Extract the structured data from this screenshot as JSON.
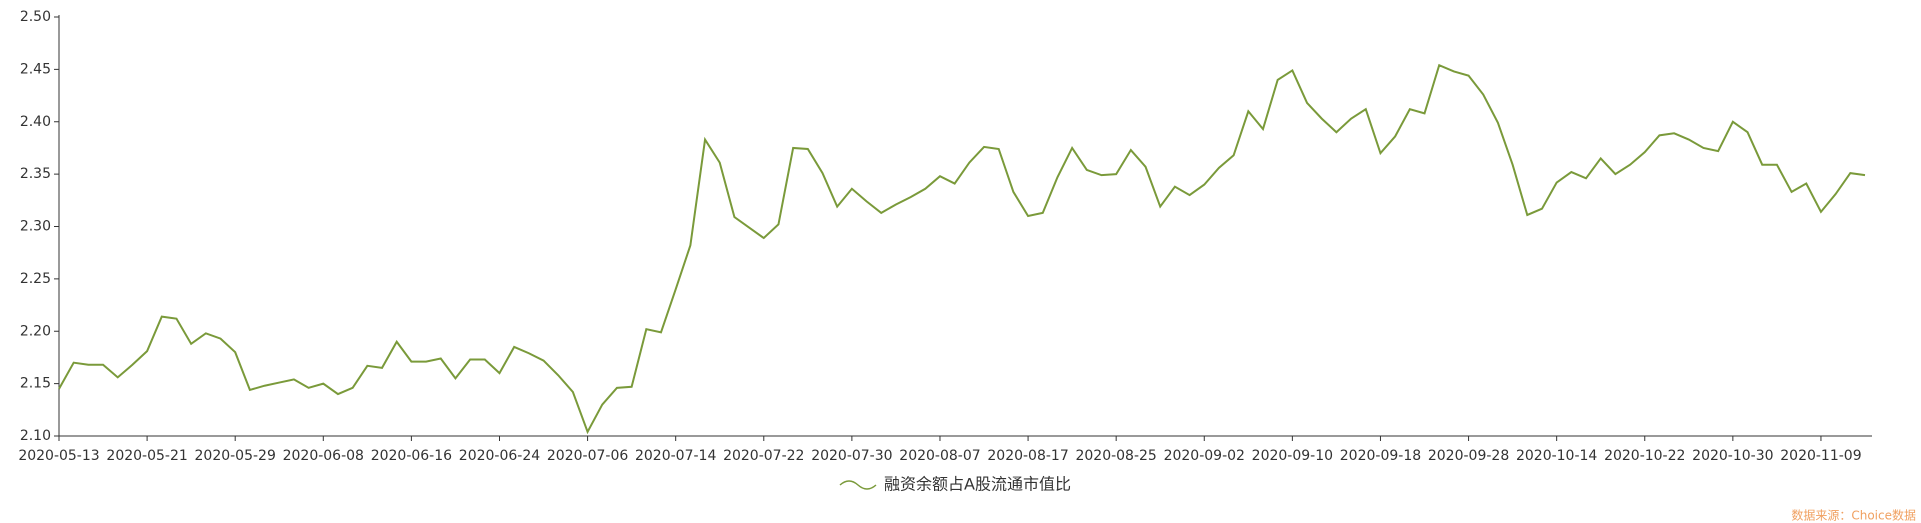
{
  "chart_data": {
    "type": "line",
    "categories": [
      "2020-05-13",
      null,
      null,
      null,
      null,
      null,
      "2020-05-21",
      null,
      null,
      null,
      null,
      null,
      "2020-05-29",
      null,
      null,
      null,
      null,
      null,
      "2020-06-08",
      null,
      null,
      null,
      null,
      null,
      "2020-06-16",
      null,
      null,
      null,
      null,
      null,
      "2020-06-24",
      null,
      null,
      null,
      null,
      null,
      "2020-07-06",
      null,
      null,
      null,
      null,
      null,
      "2020-07-14",
      null,
      null,
      null,
      null,
      null,
      "2020-07-22",
      null,
      null,
      null,
      null,
      null,
      "2020-07-30",
      null,
      null,
      null,
      null,
      null,
      "2020-08-07",
      null,
      null,
      null,
      null,
      null,
      "2020-08-17",
      null,
      null,
      null,
      null,
      null,
      "2020-08-25",
      null,
      null,
      null,
      null,
      null,
      "2020-09-02",
      null,
      null,
      null,
      null,
      null,
      "2020-09-10",
      null,
      null,
      null,
      null,
      null,
      "2020-09-18",
      null,
      null,
      null,
      null,
      null,
      "2020-09-28",
      null,
      null,
      null,
      null,
      null,
      "2020-10-14",
      null,
      null,
      null,
      null,
      null,
      "2020-10-22",
      null,
      null,
      null,
      null,
      null,
      "2020-10-30",
      null,
      null,
      null,
      null,
      null,
      "2020-11-09",
      null,
      null,
      null
    ],
    "series": [
      {
        "name": "融资余额占A股流通市值比",
        "color": "#7a9a3a",
        "values": [
          2.145,
          2.17,
          2.168,
          2.168,
          2.156,
          2.168,
          2.181,
          2.214,
          2.212,
          2.188,
          2.198,
          2.193,
          2.18,
          2.144,
          2.148,
          2.151,
          2.154,
          2.146,
          2.15,
          2.14,
          2.146,
          2.167,
          2.165,
          2.19,
          2.171,
          2.171,
          2.174,
          2.155,
          2.173,
          2.173,
          2.16,
          2.185,
          2.179,
          2.172,
          2.158,
          2.142,
          2.104,
          2.13,
          2.146,
          2.147,
          2.202,
          2.199,
          2.24,
          2.282,
          2.383,
          2.361,
          2.309,
          2.299,
          2.289,
          2.302,
          2.375,
          2.374,
          2.351,
          2.319,
          2.336,
          2.324,
          2.313,
          2.321,
          2.328,
          2.336,
          2.348,
          2.341,
          2.361,
          2.376,
          2.374,
          2.333,
          2.31,
          2.313,
          2.347,
          2.375,
          2.354,
          2.349,
          2.35,
          2.373,
          2.357,
          2.319,
          2.338,
          2.33,
          2.34,
          2.356,
          2.368,
          2.41,
          2.393,
          2.44,
          2.449,
          2.418,
          2.403,
          2.39,
          2.403,
          2.412,
          2.37,
          2.386,
          2.412,
          2.408,
          2.454,
          2.448,
          2.444,
          2.426,
          2.399,
          2.359,
          2.311,
          2.317,
          2.342,
          2.352,
          2.346,
          2.365,
          2.35,
          2.359,
          2.371,
          2.387,
          2.389,
          2.383,
          2.375,
          2.372,
          2.4,
          2.39,
          2.359,
          2.359,
          2.333,
          2.341,
          2.314,
          2.331,
          2.351,
          2.349
        ]
      }
    ],
    "ylim": [
      2.1,
      2.5
    ],
    "yticks": [
      {
        "value": 2.1,
        "label": "2.10"
      },
      {
        "value": 2.15,
        "label": "2.15"
      },
      {
        "value": 2.2,
        "label": "2.20"
      },
      {
        "value": 2.25,
        "label": "2.25"
      },
      {
        "value": 2.3,
        "label": "2.30"
      },
      {
        "value": 2.35,
        "label": "2.35"
      },
      {
        "value": 2.4,
        "label": "2.40"
      },
      {
        "value": 2.45,
        "label": "2.45"
      },
      {
        "value": 2.5,
        "label": "2.50"
      }
    ],
    "legend": "bottom",
    "source": "数据来源：Choice数据"
  }
}
